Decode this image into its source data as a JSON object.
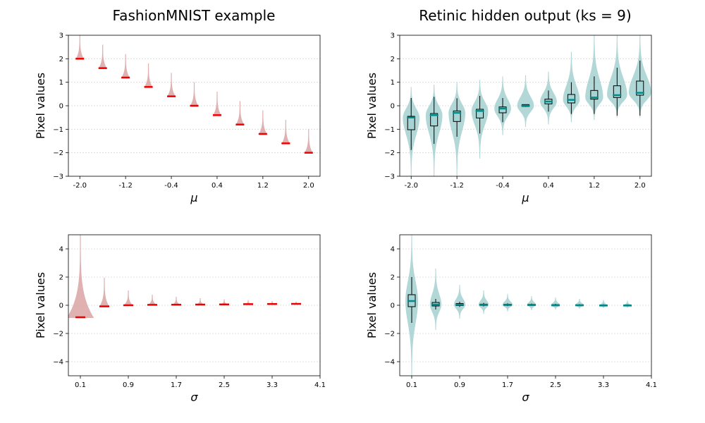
{
  "titles": [
    "FashionMNIST example",
    "Retinic hidden output (ks = 9)"
  ],
  "colors": {
    "input_violin": "#d9a3a3",
    "input_median": "#ee0000",
    "hidden_violin": "#9fcdcd",
    "hidden_box": "#a5d4d4",
    "hidden_median": "#008b8b",
    "grid": "#d6d6d6"
  },
  "chart_data": [
    {
      "type": "violin",
      "panel": "input-mu",
      "xlabel": "μ",
      "ylabel": "Pixel values",
      "xticks": [
        "-2.0",
        "-1.2",
        "-0.4",
        "0.4",
        "1.2",
        "2.0"
      ],
      "xtick_values": [
        -2.0,
        -1.2,
        -0.4,
        0.4,
        1.2,
        2.0
      ],
      "xlim": [
        -2.2,
        2.2
      ],
      "yticks": [
        "−3",
        "−2",
        "−1",
        "0",
        "1",
        "2",
        "3"
      ],
      "ytick_values": [
        -3,
        -2,
        -1,
        0,
        1,
        2,
        3
      ],
      "ylim": [
        -3,
        3
      ],
      "grid": "horizontal dotted",
      "x": [
        -2.0,
        -1.6,
        -1.2,
        -0.8,
        -0.4,
        0.0,
        0.4,
        0.8,
        1.2,
        1.6,
        2.0
      ],
      "median": [
        2.0,
        1.6,
        1.2,
        0.8,
        0.4,
        0.0,
        -0.4,
        -0.8,
        -1.2,
        -1.6,
        -2.0
      ],
      "min": [
        1.98,
        1.58,
        1.18,
        0.78,
        0.38,
        -0.02,
        -0.42,
        -0.82,
        -1.22,
        -1.62,
        -2.02
      ],
      "max": [
        3.0,
        2.6,
        2.2,
        1.8,
        1.4,
        1.0,
        0.6,
        0.2,
        -0.2,
        -0.6,
        -1.0
      ]
    },
    {
      "type": "violin-box",
      "panel": "hidden-mu",
      "xlabel": "μ",
      "ylabel": "Pixel values",
      "xticks": [
        "-2.0",
        "-1.2",
        "-0.4",
        "0.4",
        "1.2",
        "2.0"
      ],
      "xtick_values": [
        -2.0,
        -1.2,
        -0.4,
        0.4,
        1.2,
        2.0
      ],
      "xlim": [
        -2.2,
        2.2
      ],
      "yticks": [
        "−3",
        "−2",
        "−1",
        "0",
        "1",
        "2",
        "3"
      ],
      "ytick_values": [
        -3,
        -2,
        -1,
        0,
        1,
        2,
        3
      ],
      "ylim": [
        -3,
        3
      ],
      "grid": "horizontal dotted",
      "x": [
        -2.0,
        -1.6,
        -1.2,
        -0.8,
        -0.4,
        0.0,
        0.4,
        0.8,
        1.2,
        1.6,
        2.0
      ],
      "median": [
        -0.5,
        -0.4,
        -0.3,
        -0.22,
        -0.12,
        0.0,
        0.18,
        0.25,
        0.35,
        0.45,
        0.55
      ],
      "q1": [
        -1.02,
        -0.86,
        -0.67,
        -0.52,
        -0.3,
        -0.03,
        0.08,
        0.12,
        0.28,
        0.35,
        0.45
      ],
      "q3": [
        -0.45,
        -0.33,
        -0.22,
        -0.15,
        -0.05,
        0.05,
        0.28,
        0.48,
        0.65,
        0.85,
        1.05
      ],
      "whisker_low": [
        -1.88,
        -1.62,
        -1.32,
        -1.18,
        -0.7,
        -0.05,
        -0.25,
        -0.35,
        -0.35,
        -0.42,
        -0.42
      ],
      "whisker_high": [
        0.33,
        0.38,
        0.32,
        0.42,
        0.33,
        0.05,
        0.65,
        1.0,
        1.25,
        1.62,
        1.92
      ],
      "violin_min": [
        -3.0,
        -3.0,
        -3.0,
        -2.25,
        -1.25,
        -0.9,
        -0.8,
        -0.7,
        -0.6,
        -0.5,
        -0.5
      ],
      "violin_max": [
        0.8,
        0.9,
        1.0,
        1.1,
        1.25,
        1.3,
        1.45,
        2.3,
        3.0,
        3.0,
        3.0
      ],
      "violin_halfwidth": [
        0.14,
        0.14,
        0.14,
        0.14,
        0.14,
        0.14,
        0.14,
        0.14,
        0.15,
        0.17,
        0.19
      ]
    },
    {
      "type": "violin",
      "panel": "input-sigma",
      "xlabel": "σ",
      "ylabel": "Pixel values",
      "xticks": [
        "0.1",
        "0.9",
        "1.7",
        "2.5",
        "3.3",
        "4.1"
      ],
      "xtick_values": [
        0.1,
        0.9,
        1.7,
        2.5,
        3.3,
        4.1
      ],
      "xlim": [
        -0.1,
        4.1
      ],
      "yticks": [
        "−4",
        "−2",
        "0",
        "2",
        "4"
      ],
      "ytick_values": [
        -4,
        -2,
        0,
        2,
        4
      ],
      "ylim": [
        -5,
        5
      ],
      "grid": "horizontal dotted",
      "x": [
        0.1,
        0.5,
        0.9,
        1.3,
        1.7,
        2.1,
        2.5,
        2.9,
        3.3,
        3.7
      ],
      "median": [
        -0.85,
        -0.08,
        0.0,
        0.03,
        0.04,
        0.05,
        0.06,
        0.08,
        0.09,
        0.1
      ],
      "min": [
        -0.9,
        -0.12,
        -0.03,
        0.0,
        0.01,
        0.02,
        0.03,
        0.05,
        0.06,
        0.07
      ],
      "max": [
        5.0,
        1.95,
        1.05,
        0.75,
        0.6,
        0.5,
        0.42,
        0.36,
        0.3,
        0.26
      ]
    },
    {
      "type": "violin-box",
      "panel": "hidden-sigma",
      "xlabel": "σ",
      "ylabel": "Pixel values",
      "xticks": [
        "0.1",
        "0.9",
        "1.7",
        "2.5",
        "3.3",
        "4.1"
      ],
      "xtick_values": [
        0.1,
        0.9,
        1.7,
        2.5,
        3.3,
        4.1
      ],
      "xlim": [
        -0.1,
        4.1
      ],
      "yticks": [
        "−4",
        "−2",
        "0",
        "2",
        "4"
      ],
      "ytick_values": [
        -4,
        -2,
        0,
        2,
        4
      ],
      "ylim": [
        -5,
        5
      ],
      "grid": "horizontal dotted",
      "x": [
        0.1,
        0.5,
        0.9,
        1.3,
        1.7,
        2.1,
        2.5,
        2.9,
        3.3,
        3.7
      ],
      "median": [
        0.3,
        0.05,
        0.04,
        0.03,
        0.03,
        0.02,
        0.0,
        0.0,
        -0.02,
        -0.02
      ],
      "q1": [
        -0.1,
        -0.05,
        -0.02,
        -0.01,
        -0.01,
        -0.01,
        -0.03,
        -0.03,
        -0.04,
        -0.04
      ],
      "q3": [
        0.75,
        0.2,
        0.12,
        0.08,
        0.07,
        0.06,
        0.04,
        0.03,
        0.02,
        0.02
      ],
      "whisker_low": [
        -1.25,
        -0.3,
        -0.12,
        -0.08,
        -0.06,
        -0.05,
        -0.05,
        -0.05,
        -0.06,
        -0.06
      ],
      "whisker_high": [
        2.0,
        0.45,
        0.25,
        0.17,
        0.14,
        0.12,
        0.1,
        0.08,
        0.07,
        0.06
      ],
      "violin_min": [
        -5.0,
        -1.75,
        -0.95,
        -0.62,
        -0.45,
        -0.35,
        -0.3,
        -0.25,
        -0.2,
        -0.18
      ],
      "violin_max": [
        5.0,
        2.6,
        1.45,
        1.05,
        0.8,
        0.65,
        0.55,
        0.45,
        0.38,
        0.32
      ],
      "violin_halfwidth": [
        0.1,
        0.09,
        0.09,
        0.08,
        0.08,
        0.07,
        0.07,
        0.07,
        0.06,
        0.06
      ]
    }
  ]
}
